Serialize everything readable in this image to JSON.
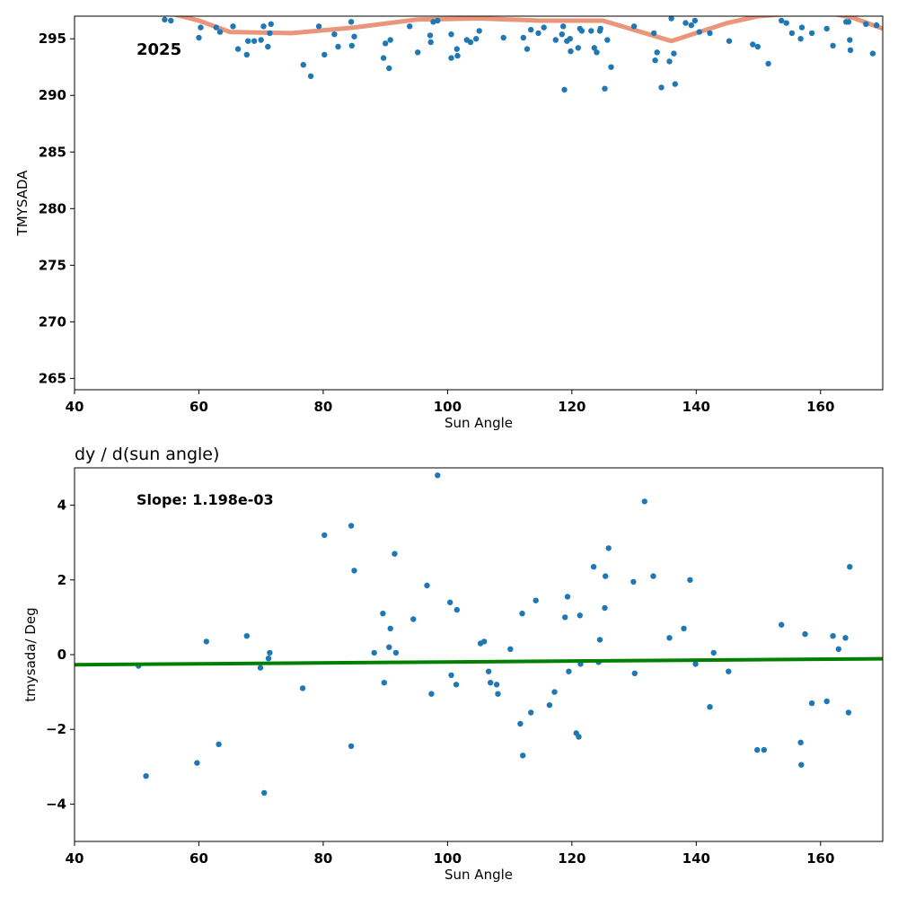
{
  "chart_data": [
    {
      "type": "scatter",
      "title": "",
      "xlabel": "Sun Angle",
      "ylabel": "TMYSADA",
      "xlim": [
        40,
        170
      ],
      "ylim": [
        264,
        297
      ],
      "xticks": [
        40,
        60,
        80,
        100,
        120,
        140,
        160
      ],
      "yticks": [
        265,
        270,
        275,
        280,
        285,
        290,
        295
      ],
      "annotation": "2025",
      "point_color": "#1f77b4",
      "points": [
        [
          54.5,
          296.7
        ],
        [
          55.5,
          296.6
        ],
        [
          60.0,
          295.1
        ],
        [
          60.3,
          296.0
        ],
        [
          62.8,
          296.0
        ],
        [
          63.4,
          295.6
        ],
        [
          65.5,
          296.1
        ],
        [
          66.3,
          294.1
        ],
        [
          67.7,
          293.6
        ],
        [
          67.9,
          294.8
        ],
        [
          68.9,
          294.8
        ],
        [
          70.0,
          294.9
        ],
        [
          70.4,
          296.1
        ],
        [
          71.1,
          294.3
        ],
        [
          71.4,
          295.5
        ],
        [
          71.6,
          296.3
        ],
        [
          76.8,
          292.7
        ],
        [
          78.0,
          291.7
        ],
        [
          79.3,
          296.1
        ],
        [
          80.2,
          293.6
        ],
        [
          81.8,
          295.4
        ],
        [
          82.4,
          294.3
        ],
        [
          84.5,
          296.5
        ],
        [
          84.6,
          294.4
        ],
        [
          85.0,
          295.2
        ],
        [
          89.7,
          293.3
        ],
        [
          90.0,
          294.6
        ],
        [
          90.6,
          292.4
        ],
        [
          90.8,
          294.9
        ],
        [
          93.9,
          296.1
        ],
        [
          95.2,
          293.8
        ],
        [
          97.2,
          295.3
        ],
        [
          97.3,
          294.7
        ],
        [
          97.7,
          296.5
        ],
        [
          98.4,
          296.6
        ],
        [
          100.6,
          295.4
        ],
        [
          100.6,
          293.3
        ],
        [
          101.5,
          294.1
        ],
        [
          101.6,
          293.5
        ],
        [
          103.1,
          294.9
        ],
        [
          103.7,
          294.7
        ],
        [
          104.6,
          295.0
        ],
        [
          105.1,
          295.7
        ],
        [
          109.0,
          295.1
        ],
        [
          112.2,
          295.1
        ],
        [
          112.8,
          294.1
        ],
        [
          113.4,
          295.8
        ],
        [
          114.6,
          295.5
        ],
        [
          115.5,
          296.0
        ],
        [
          117.4,
          294.9
        ],
        [
          118.4,
          295.4
        ],
        [
          118.6,
          296.1
        ],
        [
          118.8,
          290.5
        ],
        [
          119.2,
          294.8
        ],
        [
          119.7,
          295.0
        ],
        [
          119.8,
          293.9
        ],
        [
          121.0,
          294.2
        ],
        [
          121.3,
          295.9
        ],
        [
          121.6,
          295.7
        ],
        [
          123.1,
          295.7
        ],
        [
          123.6,
          294.2
        ],
        [
          124.0,
          293.8
        ],
        [
          124.5,
          295.7
        ],
        [
          124.6,
          295.9
        ],
        [
          125.3,
          290.6
        ],
        [
          125.7,
          294.9
        ],
        [
          126.3,
          292.5
        ],
        [
          130.0,
          296.1
        ],
        [
          133.2,
          295.5
        ],
        [
          133.4,
          293.1
        ],
        [
          133.7,
          293.8
        ],
        [
          134.4,
          290.7
        ],
        [
          135.7,
          293.0
        ],
        [
          136.0,
          296.8
        ],
        [
          136.4,
          293.7
        ],
        [
          136.6,
          291.0
        ],
        [
          138.3,
          296.4
        ],
        [
          139.2,
          296.2
        ],
        [
          139.8,
          296.6
        ],
        [
          140.5,
          295.6
        ],
        [
          142.2,
          295.5
        ],
        [
          145.3,
          294.8
        ],
        [
          149.1,
          294.5
        ],
        [
          149.9,
          294.3
        ],
        [
          151.6,
          292.8
        ],
        [
          153.7,
          296.6
        ],
        [
          154.5,
          296.4
        ],
        [
          155.4,
          295.5
        ],
        [
          156.8,
          295.0
        ],
        [
          157.0,
          296.0
        ],
        [
          158.6,
          295.5
        ],
        [
          161.0,
          295.9
        ],
        [
          162.0,
          294.4
        ],
        [
          164.1,
          296.5
        ],
        [
          164.5,
          296.5
        ],
        [
          164.7,
          294.9
        ],
        [
          164.8,
          294.0
        ],
        [
          167.3,
          296.3
        ],
        [
          168.4,
          293.7
        ],
        [
          169.0,
          296.2
        ]
      ],
      "trend_color": "#e9967a",
      "trend_line": [
        [
          55.0,
          297.3
        ],
        [
          60.0,
          296.6
        ],
        [
          65.0,
          295.6
        ],
        [
          75.0,
          295.5
        ],
        [
          85.0,
          296.0
        ],
        [
          95.0,
          296.7
        ],
        [
          105.0,
          296.8
        ],
        [
          115.0,
          296.6
        ],
        [
          125.0,
          296.6
        ],
        [
          136.0,
          294.8
        ],
        [
          145.0,
          296.4
        ],
        [
          150.0,
          297.0
        ],
        [
          160.0,
          297.4
        ],
        [
          165.0,
          296.9
        ],
        [
          170.0,
          295.9
        ]
      ]
    },
    {
      "type": "scatter",
      "title": "dy / d(sun angle)",
      "xlabel": "Sun Angle",
      "ylabel": "tmysada/ Deg",
      "xlim": [
        40,
        170
      ],
      "ylim": [
        -5,
        5
      ],
      "xticks": [
        40,
        60,
        80,
        100,
        120,
        140,
        160
      ],
      "yticks": [
        -4,
        -2,
        0,
        2,
        4
      ],
      "annotation": "Slope: 1.198e-03",
      "point_color": "#1f77b4",
      "points": [
        [
          50.3,
          -0.3
        ],
        [
          51.5,
          -3.25
        ],
        [
          59.7,
          -2.9
        ],
        [
          61.2,
          0.35
        ],
        [
          63.2,
          -2.4
        ],
        [
          67.7,
          0.5
        ],
        [
          69.9,
          -0.35
        ],
        [
          70.5,
          -3.7
        ],
        [
          71.2,
          -0.1
        ],
        [
          71.4,
          0.05
        ],
        [
          76.7,
          -0.9
        ],
        [
          80.2,
          3.2
        ],
        [
          84.5,
          3.45
        ],
        [
          84.5,
          -2.45
        ],
        [
          85.0,
          2.25
        ],
        [
          88.2,
          0.05
        ],
        [
          89.6,
          1.1
        ],
        [
          89.8,
          -0.75
        ],
        [
          90.6,
          0.2
        ],
        [
          90.8,
          0.7
        ],
        [
          91.5,
          2.7
        ],
        [
          91.7,
          0.05
        ],
        [
          94.5,
          0.95
        ],
        [
          96.7,
          1.85
        ],
        [
          97.4,
          -1.05
        ],
        [
          98.4,
          4.8
        ],
        [
          100.4,
          1.4
        ],
        [
          100.6,
          -0.55
        ],
        [
          101.4,
          -0.8
        ],
        [
          101.5,
          1.2
        ],
        [
          105.3,
          0.3
        ],
        [
          105.9,
          0.35
        ],
        [
          106.6,
          -0.45
        ],
        [
          106.9,
          -0.75
        ],
        [
          107.9,
          -0.8
        ],
        [
          108.1,
          -1.05
        ],
        [
          110.1,
          0.15
        ],
        [
          111.7,
          -1.85
        ],
        [
          112.0,
          1.1
        ],
        [
          112.1,
          -2.7
        ],
        [
          113.4,
          -1.55
        ],
        [
          114.2,
          1.45
        ],
        [
          116.4,
          -1.35
        ],
        [
          117.2,
          -1.0
        ],
        [
          118.9,
          1.0
        ],
        [
          119.3,
          1.55
        ],
        [
          119.5,
          -0.45
        ],
        [
          120.7,
          -2.1
        ],
        [
          121.1,
          -2.2
        ],
        [
          121.3,
          1.05
        ],
        [
          121.4,
          -0.25
        ],
        [
          123.5,
          2.35
        ],
        [
          124.3,
          -0.2
        ],
        [
          124.5,
          0.4
        ],
        [
          125.3,
          1.25
        ],
        [
          125.4,
          2.1
        ],
        [
          125.9,
          2.85
        ],
        [
          129.9,
          1.95
        ],
        [
          130.1,
          -0.5
        ],
        [
          131.7,
          4.1
        ],
        [
          133.1,
          2.1
        ],
        [
          135.7,
          0.45
        ],
        [
          138.0,
          0.7
        ],
        [
          139.0,
          2.0
        ],
        [
          139.9,
          -0.25
        ],
        [
          142.2,
          -1.4
        ],
        [
          142.8,
          0.05
        ],
        [
          145.2,
          -0.45
        ],
        [
          149.8,
          -2.55
        ],
        [
          150.9,
          -2.55
        ],
        [
          153.7,
          0.8
        ],
        [
          156.8,
          -2.35
        ],
        [
          156.9,
          -2.95
        ],
        [
          157.5,
          0.55
        ],
        [
          158.6,
          -1.3
        ],
        [
          161.0,
          -1.25
        ],
        [
          162.0,
          0.5
        ],
        [
          162.9,
          0.15
        ],
        [
          164.0,
          0.45
        ],
        [
          164.5,
          -1.55
        ],
        [
          164.7,
          2.35
        ]
      ],
      "trend_color": "#008000",
      "trend_line": [
        [
          40,
          -0.27
        ],
        [
          170,
          -0.11
        ]
      ]
    }
  ]
}
